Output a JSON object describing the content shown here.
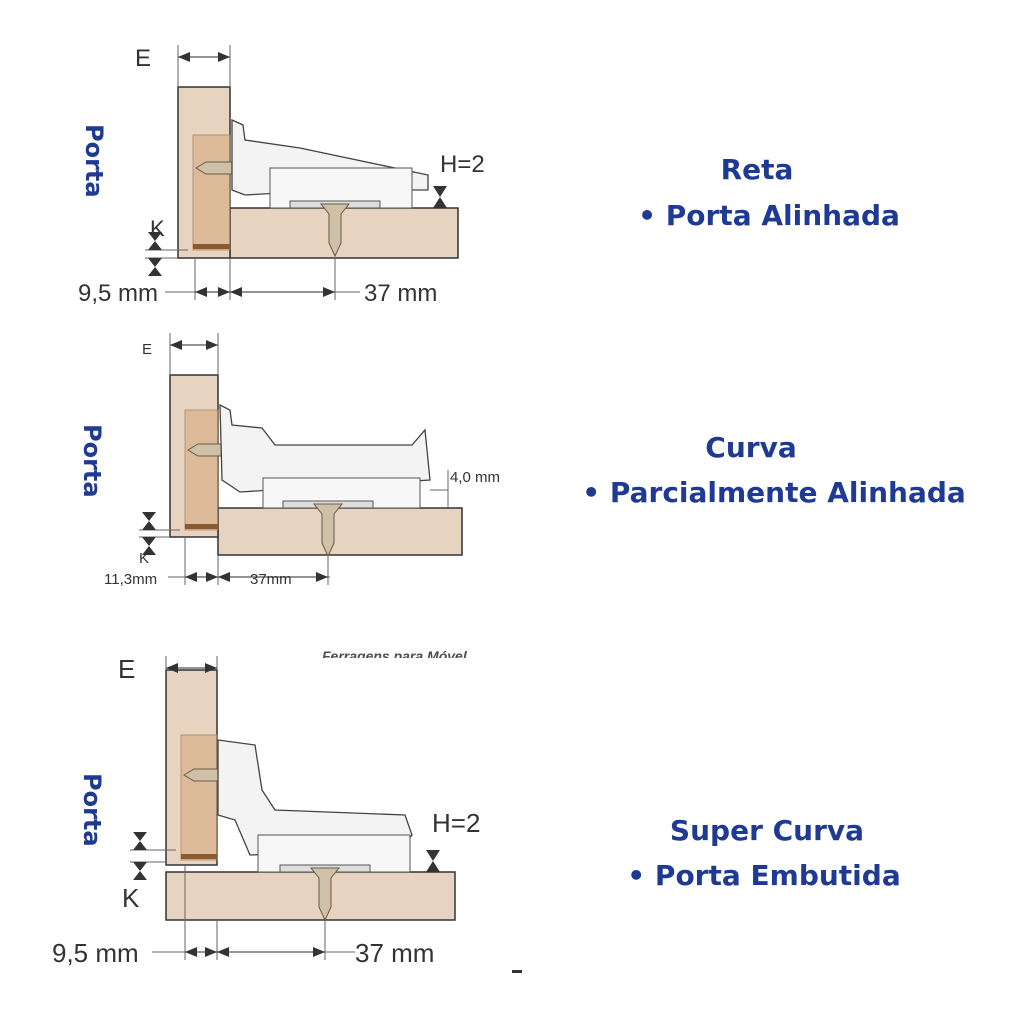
{
  "diagrams": [
    {
      "side_label": "Porta",
      "title": "Reta",
      "subtitle": "• Porta Alinhada",
      "dims": {
        "e": "E",
        "k": "K",
        "h": "H=2",
        "left": "9,5 mm",
        "right": "37 mm"
      }
    },
    {
      "side_label": "Porta",
      "title": "Curva",
      "subtitle": "• Parcialmente Alinhada",
      "dims": {
        "e": "E",
        "k": "K",
        "h": "4,0 mm",
        "left": "11,3mm",
        "right": "37mm"
      }
    },
    {
      "side_label": "Porta",
      "title": "Super Curva",
      "subtitle": "• Porta Embutida",
      "dims": {
        "e": "E",
        "k": "K",
        "h": "H=2",
        "left": "9,5 mm",
        "right": "37 mm"
      }
    }
  ],
  "watermark": "Ferragens para Móvel",
  "colors": {
    "label": "#1f3a93",
    "wood": "#e6d3c0",
    "wood_dark": "#d9b08a",
    "line": "#333333"
  }
}
